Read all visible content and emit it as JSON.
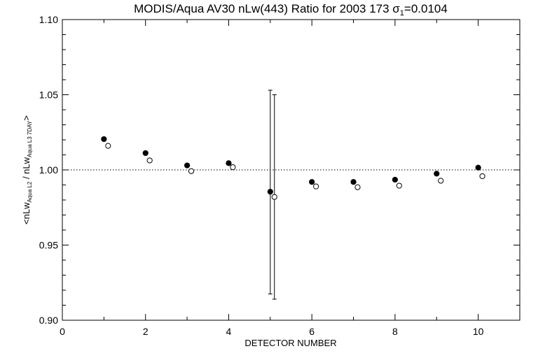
{
  "chart_data": {
    "type": "scatter",
    "title_main": "MODIS/Aqua AV30 nLw(443) Ratio for 2003 173 σ",
    "title_sub": "1",
    "title_tail": "=0.0104",
    "xlabel": "DETECTOR NUMBER",
    "ylabel_parts": {
      "open": "<nLw",
      "sub1": "Aqua L2",
      "slash": " / nLw",
      "sub2": "Aqua L3 7DAY",
      "close": ">"
    },
    "xlim": [
      0,
      11
    ],
    "ylim": [
      0.9,
      1.1
    ],
    "x_ticks": [
      "0",
      "2",
      "4",
      "6",
      "8",
      "10"
    ],
    "y_ticks": [
      "0.90",
      "0.95",
      "1.00",
      "1.05",
      "1.10"
    ],
    "reference_line": 1.0,
    "series": [
      {
        "marker": "filled-circle",
        "points": [
          {
            "x": 1,
            "y": 1.0205
          },
          {
            "x": 2,
            "y": 1.0112
          },
          {
            "x": 3,
            "y": 1.003
          },
          {
            "x": 4,
            "y": 1.0045
          },
          {
            "x": 5,
            "y": 0.9855,
            "err": [
              0.9175,
              1.053
            ]
          },
          {
            "x": 6,
            "y": 0.992
          },
          {
            "x": 7,
            "y": 0.992
          },
          {
            "x": 8,
            "y": 0.9935
          },
          {
            "x": 9,
            "y": 0.9975
          },
          {
            "x": 10,
            "y": 1.0015
          }
        ]
      },
      {
        "marker": "open-circle",
        "points": [
          {
            "x": 1.1,
            "y": 1.016
          },
          {
            "x": 2.1,
            "y": 1.0063
          },
          {
            "x": 3.1,
            "y": 0.9992
          },
          {
            "x": 4.1,
            "y": 1.0018
          },
          {
            "x": 5.1,
            "y": 0.982,
            "err": [
              0.914,
              1.05
            ]
          },
          {
            "x": 6.1,
            "y": 0.989
          },
          {
            "x": 7.1,
            "y": 0.9885
          },
          {
            "x": 8.1,
            "y": 0.9895
          },
          {
            "x": 9.1,
            "y": 0.9928
          },
          {
            "x": 10.1,
            "y": 0.9958
          }
        ]
      }
    ]
  }
}
